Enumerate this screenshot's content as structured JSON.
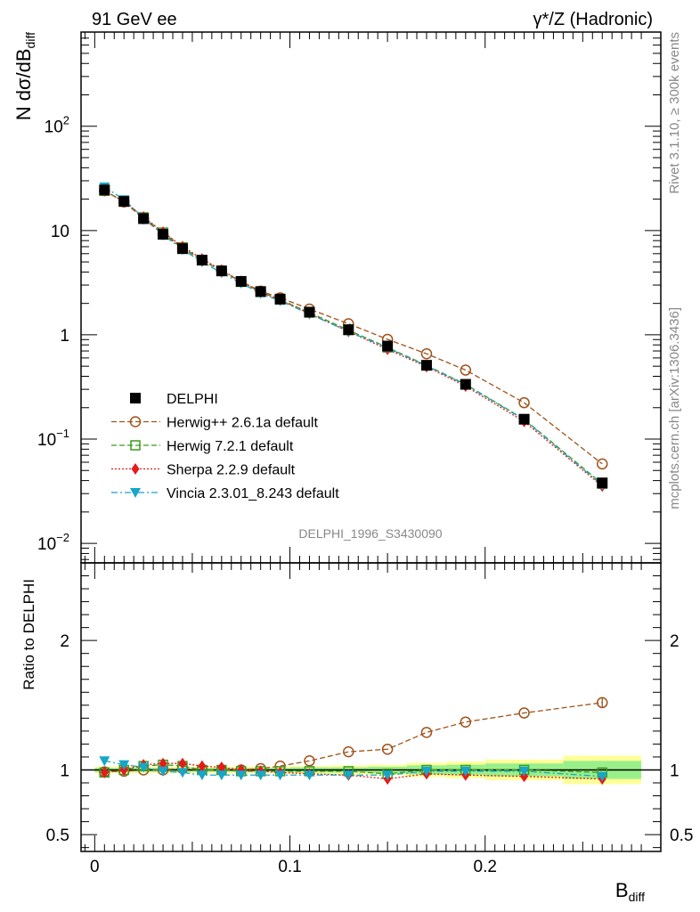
{
  "header": {
    "left_title": "91 GeV ee",
    "right_title": "γ*/Z (Hadronic)"
  },
  "side_text": {
    "rivet": "Rivet 3.1.10, ≥ 300k events",
    "mcplots": "mcplots.cern.ch [arXiv:1306.3436]"
  },
  "analysis_label": "DELPHI_1996_S3430090",
  "axes": {
    "top_ylabel_main": "N dσ/dB",
    "top_ylabel_sub": "diff",
    "bottom_ylabel": "Ratio to DELPHI",
    "xlabel_main": "B",
    "xlabel_sub": "diff",
    "top_yticks": [
      {
        "value": 0.01,
        "base": "10",
        "exp": "−2"
      },
      {
        "value": 0.1,
        "base": "10",
        "exp": "−1"
      },
      {
        "value": 1,
        "base": "1",
        "exp": ""
      },
      {
        "value": 10,
        "base": "10",
        "exp": ""
      },
      {
        "value": 100,
        "base": "10",
        "exp": "2"
      }
    ],
    "bottom_yticks": [
      {
        "value": 0.5,
        "label": "0.5"
      },
      {
        "value": 1,
        "label": "1"
      },
      {
        "value": 2,
        "label": "2"
      }
    ],
    "xticks": [
      {
        "value": 0,
        "label": "0"
      },
      {
        "value": 0.1,
        "label": "0.1"
      },
      {
        "value": 0.2,
        "label": "0.2"
      }
    ]
  },
  "chart_data": {
    "type": "line",
    "title": "γ*/Z (Hadronic)",
    "xlabel": "B_diff",
    "ylabel": "N dσ/dB_diff",
    "ratio_ylabel": "Ratio to DELPHI",
    "yscale": "log",
    "xlim": [
      -0.007,
      0.29
    ],
    "ylim": [
      0.0065,
      800
    ],
    "ratio_ylim": [
      0.37,
      2.6
    ],
    "legend_position": "left-middle",
    "x": [
      0.005,
      0.015,
      0.025,
      0.035,
      0.045,
      0.055,
      0.065,
      0.075,
      0.085,
      0.095,
      0.11,
      0.13,
      0.15,
      0.17,
      0.19,
      0.22,
      0.26
    ],
    "bin_edges": [
      0,
      0.01,
      0.02,
      0.03,
      0.04,
      0.05,
      0.06,
      0.07,
      0.08,
      0.09,
      0.1,
      0.12,
      0.14,
      0.16,
      0.18,
      0.2,
      0.24,
      0.28
    ],
    "data": {
      "name": "DELPHI",
      "values": [
        24.5,
        19.0,
        13.0,
        9.2,
        6.7,
        5.2,
        4.1,
        3.25,
        2.6,
        2.2,
        1.65,
        1.12,
        0.78,
        0.51,
        0.335,
        0.155,
        0.038
      ],
      "stat_band": [
        0.015,
        0.015,
        0.015,
        0.015,
        0.015,
        0.015,
        0.015,
        0.015,
        0.015,
        0.015,
        0.02,
        0.02,
        0.025,
        0.035,
        0.04,
        0.05,
        0.07
      ],
      "total_band": [
        0.025,
        0.025,
        0.025,
        0.025,
        0.025,
        0.025,
        0.025,
        0.025,
        0.025,
        0.025,
        0.03,
        0.035,
        0.04,
        0.055,
        0.065,
        0.08,
        0.11
      ]
    },
    "series": [
      {
        "name": "Herwig++ 2.6.1a default",
        "color": "#a0521a",
        "marker": "open-circle",
        "dash": "6,3",
        "ratio": [
          0.985,
          0.99,
          1.0,
          1.0,
          1.01,
          1.0,
          1.0,
          1.0,
          1.01,
          1.03,
          1.07,
          1.14,
          1.16,
          1.29,
          1.37,
          1.44,
          1.52
        ]
      },
      {
        "name": "Herwig 7.2.1 default",
        "color": "#3d9a1c",
        "marker": "open-square",
        "dash": "6,3",
        "ratio": [
          0.98,
          1.0,
          1.03,
          1.04,
          1.03,
          1.0,
          1.0,
          0.99,
          0.99,
          0.99,
          0.99,
          0.99,
          0.97,
          1.0,
          1.0,
          1.0,
          0.98
        ]
      },
      {
        "name": "Sherpa 2.2.9 default",
        "color": "#e41a1c",
        "marker": "diamond",
        "dash": "2,2",
        "ratio": [
          0.98,
          1.0,
          1.04,
          1.05,
          1.05,
          1.03,
          1.02,
          1.0,
          0.99,
          0.98,
          0.97,
          0.96,
          0.93,
          0.97,
          0.96,
          0.95,
          0.93
        ]
      },
      {
        "name": "Vincia 2.3.01_8.243 default",
        "color": "#17a5c8",
        "marker": "down-triangle",
        "dash": "7,3,2,3",
        "ratio": [
          1.07,
          1.04,
          1.02,
          0.99,
          0.98,
          0.96,
          0.96,
          0.96,
          0.96,
          0.96,
          0.96,
          0.96,
          0.96,
          0.99,
          0.99,
          0.99,
          0.95
        ]
      }
    ]
  }
}
